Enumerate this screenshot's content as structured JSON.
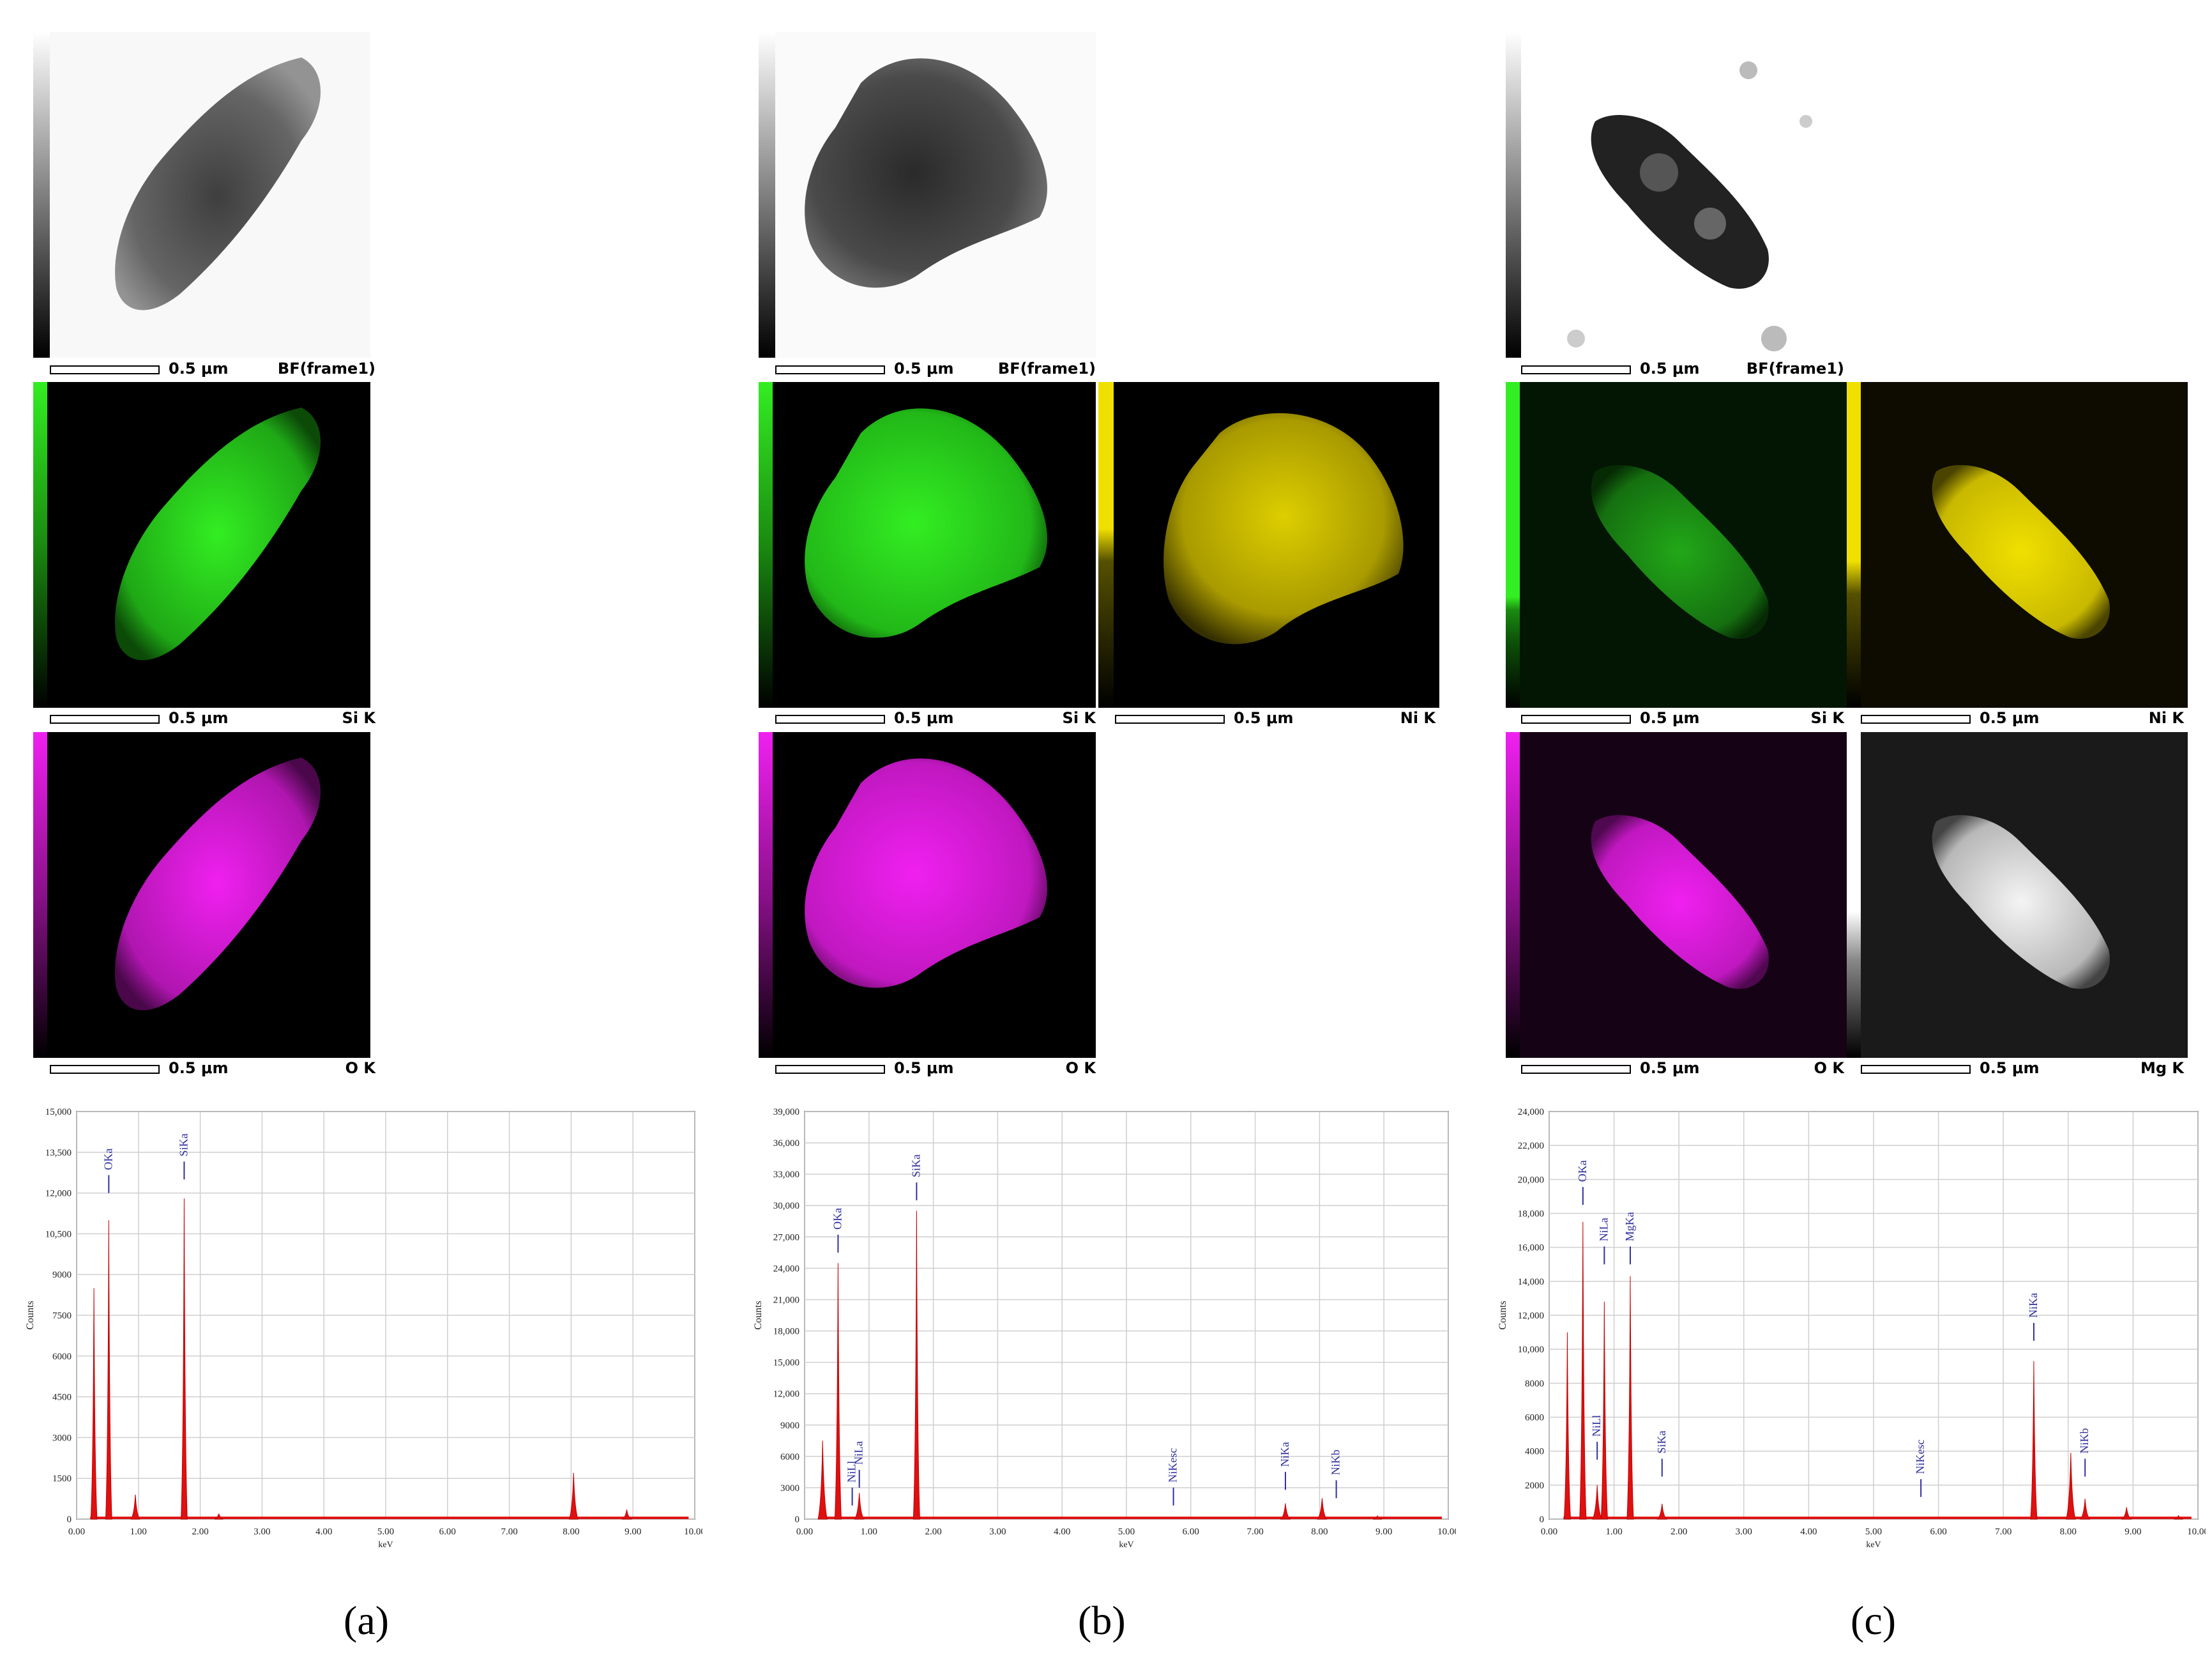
{
  "panel_labels": [
    "(a)",
    "(b)",
    "(c)"
  ],
  "scale_bar_text": "0.5 μm",
  "map_colors": {
    "BF": "#000000",
    "Si K": "#33ee22",
    "Ni K": "#f0e000",
    "O K": "#f020f0",
    "Mg K": "#ffffff"
  },
  "panels": [
    {
      "label": "(a)",
      "maps": [
        {
          "name": "bf-map",
          "label": "BF(frame1)"
        },
        {
          "name": "si-map",
          "label": "Si K"
        },
        {
          "name": "o-map",
          "label": "O K"
        }
      ]
    },
    {
      "label": "(b)",
      "maps": [
        {
          "name": "bf-map",
          "label": "BF(frame1)"
        },
        {
          "name": "si-map",
          "label": "Si K"
        },
        {
          "name": "ni-map",
          "label": "Ni K"
        },
        {
          "name": "o-map",
          "label": "O K"
        }
      ]
    },
    {
      "label": "(c)",
      "maps": [
        {
          "name": "bf-map",
          "label": "BF(frame1)"
        },
        {
          "name": "si-map",
          "label": "Si K"
        },
        {
          "name": "ni-map",
          "label": "Ni K"
        },
        {
          "name": "o-map",
          "label": "O K"
        },
        {
          "name": "mg-map",
          "label": "Mg K"
        }
      ]
    }
  ],
  "chart_data": [
    {
      "type": "area",
      "xlabel": "keV",
      "ylabel": "Counts",
      "xlim": [
        0,
        10
      ],
      "ylim": [
        0,
        15000
      ],
      "yticks": [
        "0",
        "1500",
        "3000",
        "4500",
        "6000",
        "7500",
        "9000",
        "10,500",
        "12,000",
        "13,500",
        "15,000"
      ],
      "xticks": [
        "0.00",
        "1.00",
        "2.00",
        "3.00",
        "4.00",
        "5.00",
        "6.00",
        "7.00",
        "8.00",
        "9.00",
        "10.00"
      ],
      "grid": true,
      "peaks": [
        {
          "x": 0.28,
          "y": 8500
        },
        {
          "x": 0.52,
          "y": 11000
        },
        {
          "x": 0.95,
          "y": 900
        },
        {
          "x": 1.74,
          "y": 11800
        },
        {
          "x": 2.3,
          "y": 200
        },
        {
          "x": 8.04,
          "y": 1700
        },
        {
          "x": 8.9,
          "y": 350
        }
      ],
      "annotations": [
        {
          "text": "OKa",
          "x": 0.52,
          "y": 12000
        },
        {
          "text": "SiKa",
          "x": 1.74,
          "y": 12500
        }
      ]
    },
    {
      "type": "area",
      "xlabel": "keV",
      "ylabel": "Counts",
      "xlim": [
        0,
        10
      ],
      "ylim": [
        0,
        39000
      ],
      "yticks": [
        "0",
        "3000",
        "6000",
        "9000",
        "12,000",
        "15,000",
        "18,000",
        "21,000",
        "24,000",
        "27,000",
        "30,000",
        "33,000",
        "36,000",
        "39,000"
      ],
      "xticks": [
        "0.00",
        "1.00",
        "2.00",
        "3.00",
        "4.00",
        "5.00",
        "6.00",
        "7.00",
        "8.00",
        "9.00",
        "10.00"
      ],
      "grid": true,
      "peaks": [
        {
          "x": 0.28,
          "y": 7500
        },
        {
          "x": 0.52,
          "y": 24500
        },
        {
          "x": 0.85,
          "y": 2500
        },
        {
          "x": 1.74,
          "y": 29500
        },
        {
          "x": 7.47,
          "y": 1500
        },
        {
          "x": 8.04,
          "y": 2000
        },
        {
          "x": 8.9,
          "y": 300
        }
      ],
      "annotations": [
        {
          "text": "OKa",
          "x": 0.52,
          "y": 25500
        },
        {
          "text": "NiLa",
          "x": 0.85,
          "y": 3000
        },
        {
          "text": "NiLl",
          "x": 0.74,
          "y": 1300
        },
        {
          "text": "SiKa",
          "x": 1.74,
          "y": 30500
        },
        {
          "text": "NiKesc",
          "x": 5.73,
          "y": 1300
        },
        {
          "text": "NiKa",
          "x": 7.47,
          "y": 2800
        },
        {
          "text": "NiKb",
          "x": 8.26,
          "y": 2000
        }
      ]
    },
    {
      "type": "area",
      "xlabel": "keV",
      "ylabel": "Counts",
      "xlim": [
        0,
        10
      ],
      "ylim": [
        0,
        24000
      ],
      "yticks": [
        "0",
        "2000",
        "4000",
        "6000",
        "8000",
        "10,000",
        "12,000",
        "14,000",
        "16,000",
        "18,000",
        "20,000",
        "22,000",
        "24,000"
      ],
      "xticks": [
        "0.00",
        "1.00",
        "2.00",
        "3.00",
        "4.00",
        "5.00",
        "6.00",
        "7.00",
        "8.00",
        "9.00",
        "10.00"
      ],
      "grid": true,
      "peaks": [
        {
          "x": 0.28,
          "y": 11000
        },
        {
          "x": 0.52,
          "y": 17500
        },
        {
          "x": 0.74,
          "y": 2000
        },
        {
          "x": 0.85,
          "y": 12800
        },
        {
          "x": 1.25,
          "y": 14300
        },
        {
          "x": 1.74,
          "y": 900
        },
        {
          "x": 7.47,
          "y": 9300
        },
        {
          "x": 8.04,
          "y": 3900
        },
        {
          "x": 8.26,
          "y": 1200
        },
        {
          "x": 8.9,
          "y": 700
        },
        {
          "x": 9.7,
          "y": 200
        }
      ],
      "annotations": [
        {
          "text": "OKa",
          "x": 0.52,
          "y": 18500
        },
        {
          "text": "NiLa",
          "x": 0.85,
          "y": 15000
        },
        {
          "text": "MgKa",
          "x": 1.25,
          "y": 15000
        },
        {
          "text": "NiLl",
          "x": 0.74,
          "y": 3500
        },
        {
          "text": "SiKa",
          "x": 1.74,
          "y": 2500
        },
        {
          "text": "NiKesc",
          "x": 5.73,
          "y": 1300
        },
        {
          "text": "NiKa",
          "x": 7.47,
          "y": 10500
        },
        {
          "text": "NiKb",
          "x": 8.26,
          "y": 2500
        }
      ]
    }
  ]
}
